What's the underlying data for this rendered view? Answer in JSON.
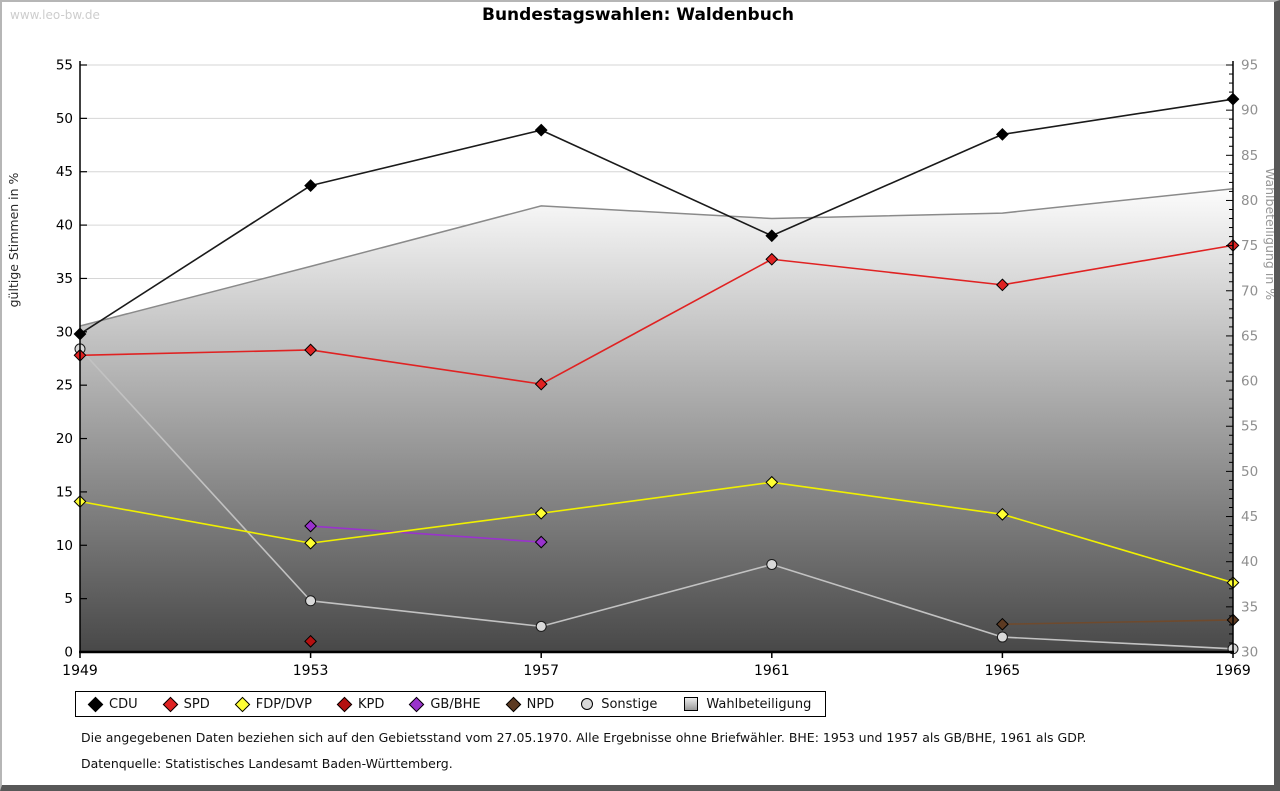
{
  "page": {
    "watermark": "www.leo-bw.de",
    "title": "Bundestagswahlen: Waldenbuch"
  },
  "chart_data": {
    "type": "line",
    "title": "Bundestagswahlen: Waldenbuch",
    "x": [
      1949,
      1953,
      1957,
      1961,
      1965,
      1969
    ],
    "left_axis": {
      "label": "gültige Stimmen in %",
      "min": 0,
      "max": 55,
      "tick_step": 5
    },
    "right_axis": {
      "label": "Wahlbeteiligung in %",
      "min": 30,
      "max": 95,
      "tick_step": 5
    },
    "grid": "horizontal",
    "legend_position": "bottom",
    "series": [
      {
        "name": "CDU",
        "axis": "left",
        "style": "line",
        "marker": "diamond",
        "color": "#1a1a1a",
        "marker_fill": "#000000",
        "values": [
          29.8,
          43.7,
          48.9,
          39.0,
          48.5,
          51.8
        ]
      },
      {
        "name": "SPD",
        "axis": "left",
        "style": "line",
        "marker": "diamond",
        "color": "#e02222",
        "marker_fill": "#e02222",
        "values": [
          27.8,
          28.3,
          25.1,
          36.8,
          34.4,
          38.1
        ]
      },
      {
        "name": "FDP/DVP",
        "axis": "left",
        "style": "line",
        "marker": "diamond",
        "color": "#f0f000",
        "marker_fill": "#ffff33",
        "values": [
          14.1,
          10.2,
          13.0,
          15.9,
          12.9,
          6.5
        ]
      },
      {
        "name": "KPD",
        "axis": "left",
        "style": "line",
        "marker": "diamond",
        "color": "#b41010",
        "marker_fill": "#b41010",
        "values": [
          null,
          1.0,
          null,
          null,
          null,
          null
        ]
      },
      {
        "name": "GB/BHE",
        "axis": "left",
        "style": "line",
        "marker": "diamond",
        "color": "#9933cc",
        "marker_fill": "#9933cc",
        "values": [
          null,
          11.8,
          10.3,
          null,
          null,
          null
        ]
      },
      {
        "name": "NPD",
        "axis": "left",
        "style": "line",
        "marker": "diamond",
        "color": "#6f4a2d",
        "marker_fill": "#5c3a22",
        "values": [
          null,
          null,
          null,
          null,
          2.6,
          3.0
        ]
      },
      {
        "name": "Sonstige",
        "axis": "left",
        "style": "line",
        "marker": "circle",
        "color": "#c2c2c2",
        "marker_fill": "#d9d9d9",
        "values": [
          28.4,
          4.8,
          2.4,
          8.2,
          1.4,
          0.3
        ]
      },
      {
        "name": "Wahlbeteiligung",
        "axis": "right",
        "style": "area",
        "marker": "none",
        "color": "#8a8a8a",
        "area_gradient": [
          "#fcfcfc",
          "#484848"
        ],
        "values": [
          66.1,
          72.7,
          79.4,
          78.0,
          78.6,
          81.3
        ]
      }
    ]
  },
  "footnotes": {
    "line1": "Die angegebenen Daten beziehen sich auf den Gebietsstand vom 27.05.1970. Alle Ergebnisse ohne Briefwähler. BHE: 1953 und 1957 als GB/BHE, 1961 als GDP.",
    "line2": "Datenquelle: Statistisches Landesamt Baden-Württemberg."
  }
}
